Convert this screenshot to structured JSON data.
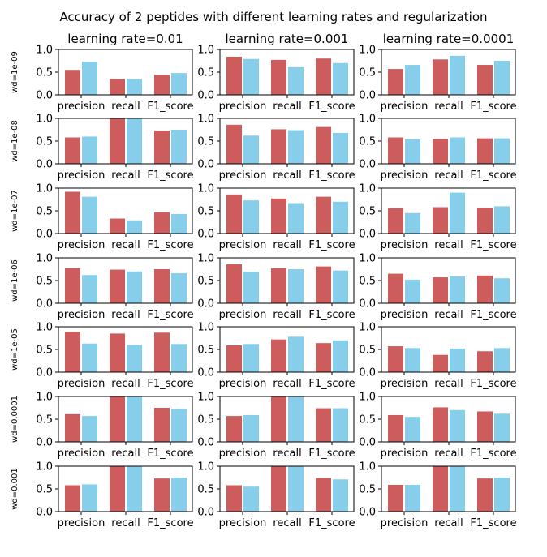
{
  "suptitle": "Accuracy of 2 peptides with different learning rates and regularization",
  "colors": {
    "series1": "#cd5c5c",
    "series2": "#87ceeb",
    "axes": "#000000"
  },
  "chart_data": {
    "type": "bar",
    "grid": false,
    "categories": [
      "precision",
      "recall",
      "F1_score"
    ],
    "ylim": [
      0,
      1.0
    ],
    "yticks": [
      "0.0",
      "0.5",
      "1.0"
    ],
    "col_titles": [
      "learning rate=0.01",
      "learning rate=0.001",
      "learning rate=0.0001"
    ],
    "row_labels": [
      "wd=1e-09",
      "wd=1e-08",
      "wd=1e-07",
      "wd=1e-06",
      "wd=1e-05",
      "wd=0.0001",
      "wd=0.001"
    ],
    "panels": [
      [
        {
          "series": [
            [
              0.55,
              0.35,
              0.44
            ],
            [
              0.73,
              0.35,
              0.48
            ]
          ]
        },
        {
          "series": [
            [
              0.84,
              0.77,
              0.8
            ],
            [
              0.79,
              0.61,
              0.7
            ]
          ]
        },
        {
          "series": [
            [
              0.57,
              0.78,
              0.66
            ],
            [
              0.66,
              0.86,
              0.75
            ]
          ]
        }
      ],
      [
        {
          "series": [
            [
              0.58,
              1.0,
              0.73
            ],
            [
              0.6,
              1.0,
              0.75
            ]
          ]
        },
        {
          "series": [
            [
              0.86,
              0.76,
              0.81
            ],
            [
              0.62,
              0.74,
              0.68
            ]
          ]
        },
        {
          "series": [
            [
              0.58,
              0.55,
              0.56
            ],
            [
              0.54,
              0.58,
              0.56
            ]
          ]
        }
      ],
      [
        {
          "series": [
            [
              0.92,
              0.33,
              0.47
            ],
            [
              0.81,
              0.29,
              0.43
            ]
          ]
        },
        {
          "series": [
            [
              0.86,
              0.77,
              0.81
            ],
            [
              0.73,
              0.67,
              0.7
            ]
          ]
        },
        {
          "series": [
            [
              0.56,
              0.58,
              0.57
            ],
            [
              0.45,
              0.9,
              0.6
            ]
          ]
        }
      ],
      [
        {
          "series": [
            [
              0.77,
              0.74,
              0.75
            ],
            [
              0.62,
              0.7,
              0.66
            ]
          ]
        },
        {
          "series": [
            [
              0.86,
              0.77,
              0.81
            ],
            [
              0.69,
              0.75,
              0.72
            ]
          ]
        },
        {
          "series": [
            [
              0.65,
              0.57,
              0.61
            ],
            [
              0.52,
              0.59,
              0.55
            ]
          ]
        }
      ],
      [
        {
          "series": [
            [
              0.89,
              0.85,
              0.87
            ],
            [
              0.63,
              0.6,
              0.62
            ]
          ]
        },
        {
          "series": [
            [
              0.59,
              0.72,
              0.64
            ],
            [
              0.62,
              0.78,
              0.7
            ]
          ]
        },
        {
          "series": [
            [
              0.57,
              0.38,
              0.46
            ],
            [
              0.53,
              0.52,
              0.53
            ]
          ]
        }
      ],
      [
        {
          "series": [
            [
              0.61,
              1.0,
              0.75
            ],
            [
              0.57,
              1.0,
              0.73
            ]
          ]
        },
        {
          "series": [
            [
              0.57,
              1.0,
              0.74
            ],
            [
              0.59,
              1.0,
              0.74
            ]
          ]
        },
        {
          "series": [
            [
              0.59,
              0.76,
              0.67
            ],
            [
              0.55,
              0.7,
              0.62
            ]
          ]
        }
      ],
      [
        {
          "series": [
            [
              0.58,
              1.0,
              0.73
            ],
            [
              0.6,
              1.0,
              0.75
            ]
          ]
        },
        {
          "series": [
            [
              0.58,
              1.0,
              0.74
            ],
            [
              0.55,
              1.0,
              0.71
            ]
          ]
        },
        {
          "series": [
            [
              0.59,
              1.0,
              0.73
            ],
            [
              0.59,
              1.0,
              0.75
            ]
          ]
        }
      ]
    ]
  }
}
